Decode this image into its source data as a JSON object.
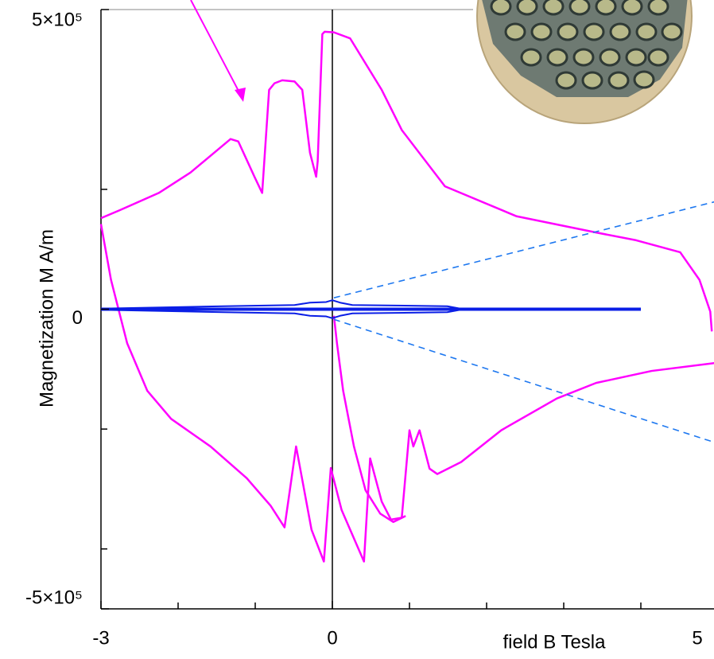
{
  "chart_data": {
    "type": "line",
    "xlabel": "field B Tesla",
    "ylabel": "Magnetization M A/m",
    "xlim": [
      -3,
      5
    ],
    "ylim": [
      -500000,
      500000
    ],
    "xticks": [
      -3,
      0,
      5
    ],
    "xminor_ticks": [
      -2,
      -1,
      1,
      2,
      3,
      4
    ],
    "yticks": [
      {
        "value": 500000,
        "label": "5×10⁵"
      },
      0,
      {
        "value": -500000,
        "label": "-5×10⁵"
      }
    ],
    "yminor_ticks": [
      200000,
      -200000,
      -400000
    ],
    "series": [
      {
        "color": "#ff00ff",
        "width": 2.5,
        "style": "solid",
        "x": [
          4.92,
          4.9,
          4.76,
          4.51,
          3.94,
          3.42,
          2.39,
          1.46,
          0.9,
          0.64,
          0.23,
          0.02,
          -0.1,
          -0.13,
          -0.19,
          -0.21,
          -0.29,
          -0.39,
          -0.49,
          -0.65,
          -0.75,
          -0.82,
          -0.91,
          -1.01,
          -1.22,
          -1.32,
          -1.84,
          -2.25,
          -2.76,
          -3.0
        ],
        "values": [
          -37000,
          -4000,
          49000,
          95000,
          115000,
          128000,
          155000,
          205000,
          299000,
          366000,
          452000,
          462000,
          463000,
          459000,
          247000,
          221000,
          261000,
          366000,
          380000,
          382000,
          377000,
          366000,
          194000,
          221000,
          280000,
          284000,
          228000,
          194000,
          165000,
          152000
        ]
      },
      {
        "color": "#ff00ff",
        "width": 2.5,
        "style": "solid",
        "x": [
          -3.0,
          -2.87,
          -2.66,
          -2.4,
          -2.09,
          -1.58,
          -1.11,
          -0.8,
          -0.62,
          -0.47,
          -0.27,
          -0.11,
          -0.02,
          0.12,
          0.41,
          0.49,
          0.64,
          0.76,
          0.9,
          1.0,
          1.05,
          1.13,
          1.26,
          1.36,
          1.67,
          2.19,
          2.91,
          3.42,
          4.14,
          4.95
        ],
        "values": [
          142000,
          49000,
          -57000,
          -136000,
          -183000,
          -229000,
          -282000,
          -328000,
          -364000,
          -229000,
          -368000,
          -421000,
          -265000,
          -335000,
          -421000,
          -249000,
          -321000,
          -351000,
          -348000,
          -202000,
          -229000,
          -202000,
          -266000,
          -275000,
          -255000,
          -202000,
          -149000,
          -123000,
          -103000,
          -90000
        ]
      },
      {
        "color": "#ff00ff",
        "width": 2.5,
        "style": "solid",
        "x": [
          0.02,
          0.06,
          0.14,
          0.28,
          0.43,
          0.62,
          0.79,
          0.95
        ],
        "values": [
          -11000,
          -57000,
          -136000,
          -229000,
          -302000,
          -341000,
          -355000,
          -345000
        ]
      },
      {
        "color": "#0a1ee6",
        "width": 4,
        "style": "solid",
        "x": [
          -3,
          4.0
        ],
        "values": [
          0,
          0
        ]
      },
      {
        "color": "#0a1ee6",
        "width": 2,
        "style": "solid",
        "x": [
          -3,
          -1.42,
          -0.49,
          -0.29,
          -0.08,
          0,
          0.1,
          0.26,
          1.49,
          1.7
        ],
        "values": [
          1000,
          5000,
          7000,
          11000,
          12000,
          15000,
          11000,
          7000,
          5000,
          0
        ]
      },
      {
        "color": "#0a1ee6",
        "width": 2,
        "style": "solid",
        "x": [
          -3,
          -1.42,
          -0.49,
          -0.29,
          -0.08,
          0,
          0.1,
          0.26,
          1.49,
          1.7
        ],
        "values": [
          -1000,
          -5000,
          -7000,
          -11000,
          -12000,
          -15000,
          -11000,
          -7000,
          -5000,
          0
        ]
      },
      {
        "color": "#1e78f0",
        "width": 1.6,
        "style": "dashed",
        "x": [
          0.02,
          4.95
        ],
        "values": [
          19000,
          179000
        ]
      },
      {
        "color": "#1e78f0",
        "width": 1.6,
        "style": "dashed",
        "x": [
          0.02,
          4.95
        ],
        "values": [
          -17000,
          -222000
        ]
      }
    ]
  }
}
